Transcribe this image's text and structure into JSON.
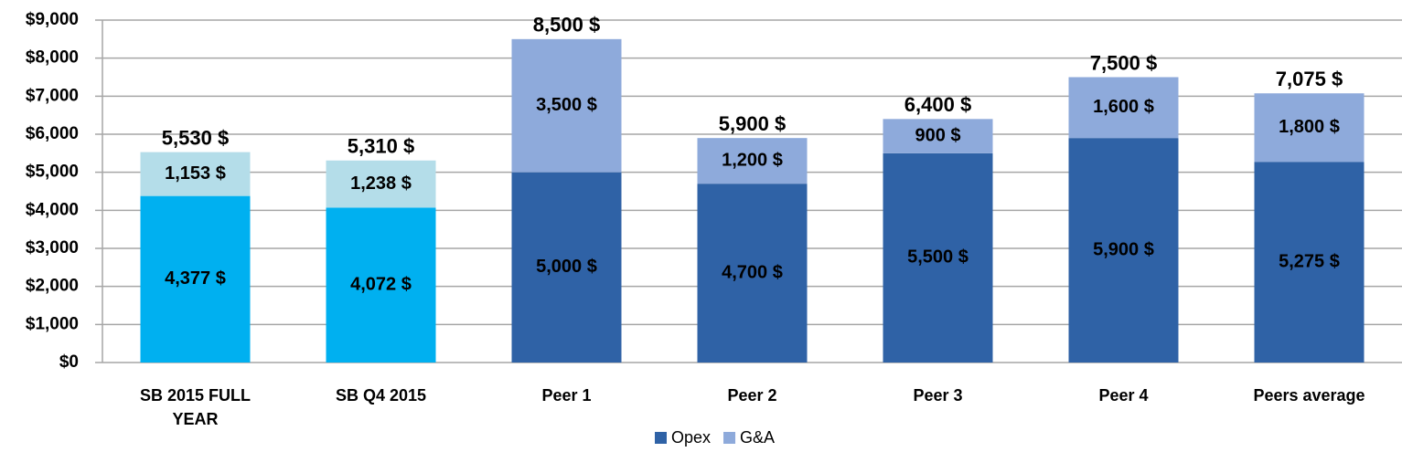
{
  "chart_data": {
    "type": "stacked_bar",
    "categories": [
      "SB 2015 FULL YEAR",
      "SB Q4 2015",
      "Peer 1",
      "Peer 2",
      "Peer 3",
      "Peer 4",
      "Peers average"
    ],
    "series": [
      {
        "name": "Opex",
        "color": "#2f62a6",
        "colors": [
          "#00b0f0",
          "#00b0f0",
          "#2f62a6",
          "#2f62a6",
          "#2f62a6",
          "#2f62a6",
          "#2f62a6"
        ],
        "values": [
          4377,
          4072,
          5000,
          4700,
          5500,
          5900,
          5275
        ],
        "value_labels": [
          "4,377 $",
          "4,072 $",
          "5,000 $",
          "4,700 $",
          "5,500 $",
          "5,900 $",
          "5,275 $"
        ]
      },
      {
        "name": "G&A",
        "color": "#8eaadb",
        "colors": [
          "#b4dde9",
          "#b4dde9",
          "#8eaadb",
          "#8eaadb",
          "#8eaadb",
          "#8eaadb",
          "#8eaadb"
        ],
        "values": [
          1153,
          1238,
          3500,
          1200,
          900,
          1600,
          1800
        ],
        "value_labels": [
          "1,153 $",
          "1,238 $",
          "3,500 $",
          "1,200 $",
          "900 $",
          "1,600 $",
          "1,800 $"
        ]
      }
    ],
    "totals": [
      5530,
      5310,
      8500,
      5900,
      6400,
      7500,
      7075
    ],
    "total_labels": [
      "5,530 $",
      "5,310 $",
      "8,500 $",
      "5,900 $",
      "6,400 $",
      "7,500 $",
      "7,075 $"
    ],
    "ylim": [
      0,
      9000
    ],
    "yticks": [
      {
        "value": 0,
        "label": "$0"
      },
      {
        "value": 1000,
        "label": "$1,000"
      },
      {
        "value": 2000,
        "label": "$2,000"
      },
      {
        "value": 3000,
        "label": "$3,000"
      },
      {
        "value": 4000,
        "label": "$4,000"
      },
      {
        "value": 5000,
        "label": "$5,000"
      },
      {
        "value": 6000,
        "label": "$6,000"
      },
      {
        "value": 7000,
        "label": "$7,000"
      },
      {
        "value": 8000,
        "label": "$8,000"
      },
      {
        "value": 9000,
        "label": "$9,000"
      }
    ],
    "grid": true,
    "legend": "bottom"
  }
}
